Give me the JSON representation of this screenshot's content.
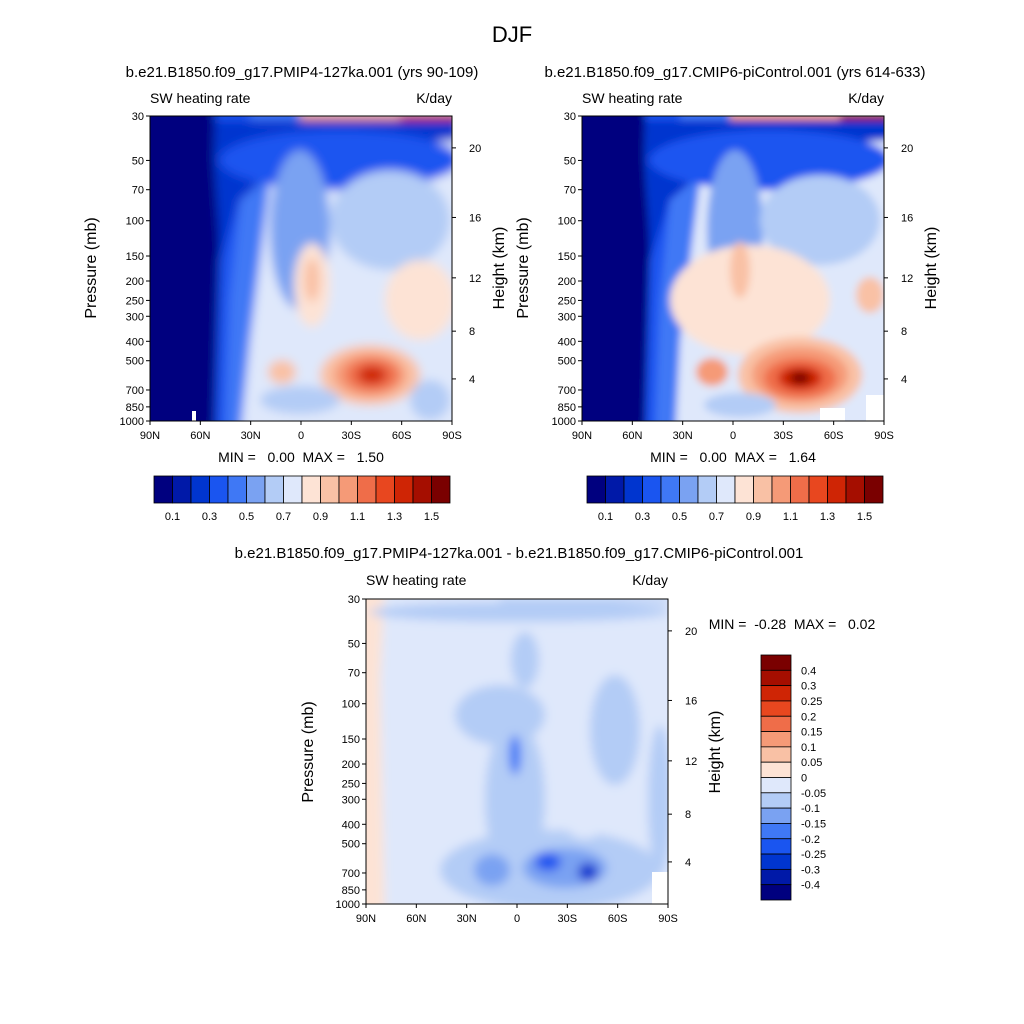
{
  "figure": {
    "title": "DJF"
  },
  "colors": {
    "full_scale": [
      "#00007f",
      "#0019a8",
      "#0035cf",
      "#1a55f0",
      "#3f78f5",
      "#7aa2f2",
      "#b3ccf6",
      "#dfe8fb",
      "#fde3d5",
      "#f9c1a5",
      "#f59a77",
      "#ef6d49",
      "#e8471f",
      "#cf2505",
      "#a50e00",
      "#7a0000"
    ],
    "diff_scale": [
      "#00007f",
      "#0019a8",
      "#0035cf",
      "#1a55f0",
      "#3f78f5",
      "#7aa2f2",
      "#b3ccf6",
      "#dfe8fb",
      "#fde3d5",
      "#f9c1a5",
      "#f59a77",
      "#ef6d49",
      "#e8471f",
      "#cf2505",
      "#a50e00",
      "#7a0000"
    ]
  },
  "panels": [
    {
      "title": "b.e21.B1850.f09_g17.PMIP4-127ka.001 (yrs 90-109)",
      "left_label": "SW heating rate",
      "right_label": "K/day",
      "stats": "MIN =   0.00  MAX =   1.50",
      "stats_min": "0.00",
      "stats_max": "1.50"
    },
    {
      "title": "b.e21.B1850.f09_g17.CMIP6-piControl.001 (yrs 614-633)",
      "left_label": "SW heating rate",
      "right_label": "K/day",
      "stats": "MIN =   0.00  MAX =   1.64",
      "stats_min": "0.00",
      "stats_max": "1.64"
    },
    {
      "title": "b.e21.B1850.f09_g17.PMIP4-127ka.001 - b.e21.B1850.f09_g17.CMIP6-piControl.001",
      "left_label": "SW heating rate",
      "right_label": "K/day",
      "stats": "MIN =  -0.28  MAX =   0.02",
      "stats_min": "-0.28",
      "stats_max": "0.02"
    }
  ],
  "chart_data": [
    {
      "type": "heatmap",
      "title": "b.e21.B1850.f09_g17.PMIP4-127ka.001 (yrs 90-109)",
      "variable": "SW heating rate",
      "units": "K/day",
      "xlabel": "",
      "ylabel": "Pressure (mb)",
      "y2label": "Height (km)",
      "x_ticks": [
        "90N",
        "60N",
        "30N",
        "0",
        "30S",
        "60S",
        "90S"
      ],
      "x_range": [
        90,
        -90
      ],
      "y_ticks": [
        30,
        50,
        70,
        100,
        150,
        200,
        250,
        300,
        400,
        500,
        700,
        850,
        1000
      ],
      "y_range": [
        1000,
        30
      ],
      "y_scale": "log",
      "y2_ticks": [
        4,
        8,
        12,
        16,
        20
      ],
      "colorbar_labels": [
        "0.1",
        "0.3",
        "0.5",
        "0.7",
        "0.9",
        "1.1",
        "1.3",
        "1.5"
      ],
      "colorbar_levels": [
        0.1,
        0.2,
        0.3,
        0.4,
        0.5,
        0.6,
        0.7,
        0.8,
        0.9,
        1.0,
        1.1,
        1.2,
        1.3,
        1.4,
        1.5
      ],
      "min": 0.0,
      "max": 1.5
    },
    {
      "type": "heatmap",
      "title": "b.e21.B1850.f09_g17.CMIP6-piControl.001 (yrs 614-633)",
      "variable": "SW heating rate",
      "units": "K/day",
      "xlabel": "",
      "ylabel": "Pressure (mb)",
      "y2label": "Height (km)",
      "x_ticks": [
        "90N",
        "60N",
        "30N",
        "0",
        "30S",
        "60S",
        "90S"
      ],
      "x_range": [
        90,
        -90
      ],
      "y_ticks": [
        30,
        50,
        70,
        100,
        150,
        200,
        250,
        300,
        400,
        500,
        700,
        850,
        1000
      ],
      "y_range": [
        1000,
        30
      ],
      "y_scale": "log",
      "y2_ticks": [
        4,
        8,
        12,
        16,
        20
      ],
      "colorbar_labels": [
        "0.1",
        "0.3",
        "0.5",
        "0.7",
        "0.9",
        "1.1",
        "1.3",
        "1.5"
      ],
      "colorbar_levels": [
        0.1,
        0.2,
        0.3,
        0.4,
        0.5,
        0.6,
        0.7,
        0.8,
        0.9,
        1.0,
        1.1,
        1.2,
        1.3,
        1.4,
        1.5
      ],
      "min": 0.0,
      "max": 1.64
    },
    {
      "type": "heatmap",
      "title": "b.e21.B1850.f09_g17.PMIP4-127ka.001 - b.e21.B1850.f09_g17.CMIP6-piControl.001",
      "variable": "SW heating rate",
      "units": "K/day",
      "xlabel": "",
      "ylabel": "Pressure (mb)",
      "y2label": "Height (km)",
      "x_ticks": [
        "90N",
        "60N",
        "30N",
        "0",
        "30S",
        "60S",
        "90S"
      ],
      "x_range": [
        90,
        -90
      ],
      "y_ticks": [
        30,
        50,
        70,
        100,
        150,
        200,
        250,
        300,
        400,
        500,
        700,
        850,
        1000
      ],
      "y_range": [
        1000,
        30
      ],
      "y_scale": "log",
      "y2_ticks": [
        4,
        8,
        12,
        16,
        20
      ],
      "colorbar_labels": [
        "0.4",
        "0.3",
        "0.25",
        "0.2",
        "0.15",
        "0.1",
        "0.05",
        "0",
        "-0.05",
        "-0.1",
        "-0.15",
        "-0.2",
        "-0.25",
        "-0.3",
        "-0.4"
      ],
      "colorbar_levels": [
        -0.4,
        -0.3,
        -0.25,
        -0.2,
        -0.15,
        -0.1,
        -0.05,
        0,
        0.05,
        0.1,
        0.15,
        0.2,
        0.25,
        0.3,
        0.4
      ],
      "min": -0.28,
      "max": 0.02
    }
  ]
}
